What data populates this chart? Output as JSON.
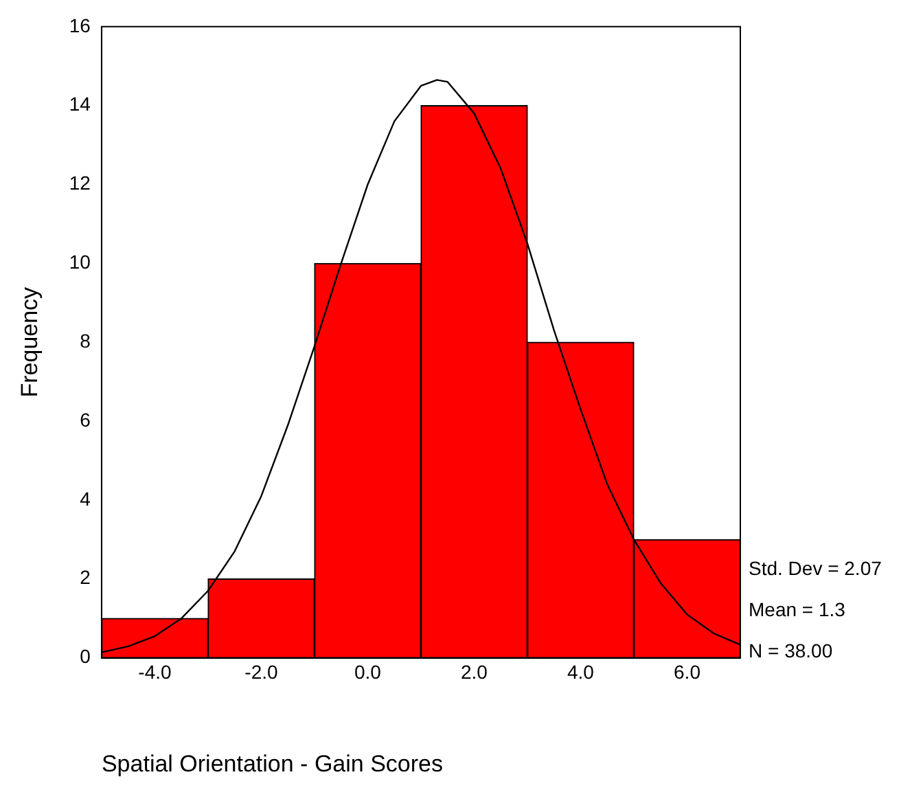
{
  "chart_data": {
    "type": "histogram",
    "xlabel": "Spatial Orientation - Gain Scores",
    "ylabel": "Frequency",
    "bins": [
      -5,
      -3,
      -1,
      1,
      3,
      5,
      7
    ],
    "values": [
      1,
      2,
      10,
      14,
      8,
      3
    ],
    "color": "#ff0000",
    "xlim": [
      -5,
      7
    ],
    "xticks": [
      {
        "value": -4,
        "label": "-4.0"
      },
      {
        "value": -2,
        "label": "-2.0"
      },
      {
        "value": 0,
        "label": "0.0"
      },
      {
        "value": 2,
        "label": "2.0"
      },
      {
        "value": 4,
        "label": "4.0"
      },
      {
        "value": 6,
        "label": "6.0"
      }
    ],
    "ylim": [
      0,
      16
    ],
    "yticks": [
      0,
      2,
      4,
      6,
      8,
      10,
      12,
      14,
      16
    ],
    "series": [
      {
        "type": "line",
        "color": "#000000",
        "x": [
          -5,
          -4.5,
          -4,
          -3.5,
          -3,
          -2.5,
          -2,
          -1.5,
          -1,
          -0.5,
          0,
          0.5,
          1,
          1.3,
          1.5,
          2,
          2.5,
          3,
          3.5,
          4,
          4.5,
          5,
          5.5,
          6,
          6.5,
          7
        ],
        "values": [
          0.14,
          0.29,
          0.55,
          1.0,
          1.7,
          2.7,
          4.1,
          5.9,
          7.9,
          10.0,
          12.0,
          13.6,
          14.5,
          14.65,
          14.6,
          13.8,
          12.4,
          10.5,
          8.3,
          6.3,
          4.4,
          3.0,
          1.9,
          1.1,
          0.62,
          0.33
        ]
      }
    ],
    "annotations": [
      "Std. Dev = 2.07",
      "Mean = 1.3",
      "N = 38.00"
    ]
  }
}
